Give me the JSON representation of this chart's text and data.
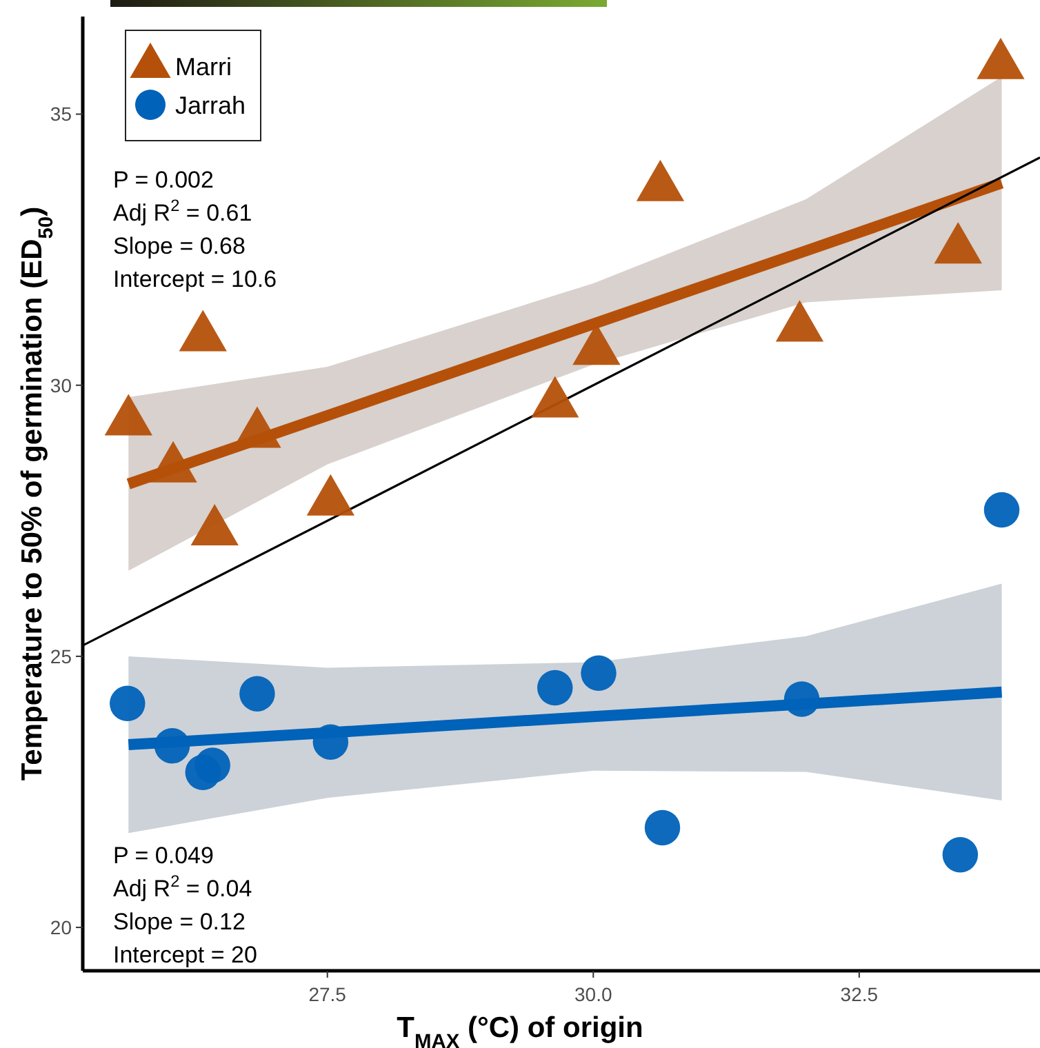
{
  "chart_data": {
    "type": "scatter",
    "xlabel": "T$_{MAX}$ (°C) of origin",
    "ylabel": "Temperature to 50% of germination (ED$_{50}$)",
    "xlim": [
      25.2,
      34.2
    ],
    "ylim": [
      19.2,
      36.8
    ],
    "xticks": [
      {
        "value": 27.5,
        "label": "27.5"
      },
      {
        "value": 30,
        "label": "30.0"
      },
      {
        "value": 32.5,
        "label": "32.5"
      }
    ],
    "yticks": [
      20,
      25,
      30,
      35
    ],
    "grid": false,
    "legend": "top left",
    "series": [
      {
        "name": "Marri",
        "marker": "triangle",
        "color": "#b5500a",
        "x": [
          25.63,
          26.05,
          26.33,
          26.44,
          26.84,
          27.53,
          29.64,
          30.03,
          30.63,
          31.94,
          33.43,
          33.83
        ],
        "values": [
          29.33,
          28.46,
          30.88,
          27.3,
          29.1,
          27.85,
          29.66,
          30.63,
          33.65,
          31.06,
          32.5,
          35.9
        ]
      },
      {
        "name": "Jarrah",
        "marker": "circle",
        "color": "#0062b8",
        "x": [
          25.62,
          26.04,
          26.33,
          26.42,
          26.84,
          27.53,
          29.64,
          30.05,
          30.65,
          31.96,
          33.45,
          33.84
        ],
        "values": [
          24.13,
          23.35,
          22.86,
          22.99,
          24.31,
          23.42,
          24.42,
          24.69,
          21.84,
          24.21,
          21.34,
          27.7
        ]
      },
      {
        "type": "line",
        "color": "#b5500a",
        "x": [
          25.63,
          27.5,
          30.0,
          32.0,
          33.84
        ],
        "values": [
          28.18,
          29.44,
          31.13,
          32.48,
          33.73
        ],
        "lower": [
          26.58,
          28.54,
          30.38,
          31.53,
          31.75
        ],
        "upper": [
          29.78,
          30.34,
          31.88,
          33.43,
          35.69
        ]
      },
      {
        "type": "line",
        "color": "#0062b8",
        "x": [
          25.63,
          27.5,
          30.0,
          32.0,
          33.84
        ],
        "values": [
          23.37,
          23.59,
          23.89,
          24.12,
          24.34
        ],
        "lower": [
          21.74,
          22.39,
          22.89,
          22.87,
          22.34
        ],
        "upper": [
          25.0,
          24.79,
          24.89,
          25.37,
          26.34
        ]
      },
      {
        "type": "line",
        "color": "#000000",
        "x": [
          25.2,
          34.2
        ],
        "values": [
          25.2,
          34.2
        ]
      }
    ],
    "annotations": [
      "P = 0.002",
      "Adj R$^{2}$ = 0.61",
      "Slope = 0.68",
      "Intercept = 10.6",
      "P = 0.049",
      "Adj R$^{2}$ = 0.04",
      "Slope = 0.12",
      "Intercept = 20"
    ]
  }
}
